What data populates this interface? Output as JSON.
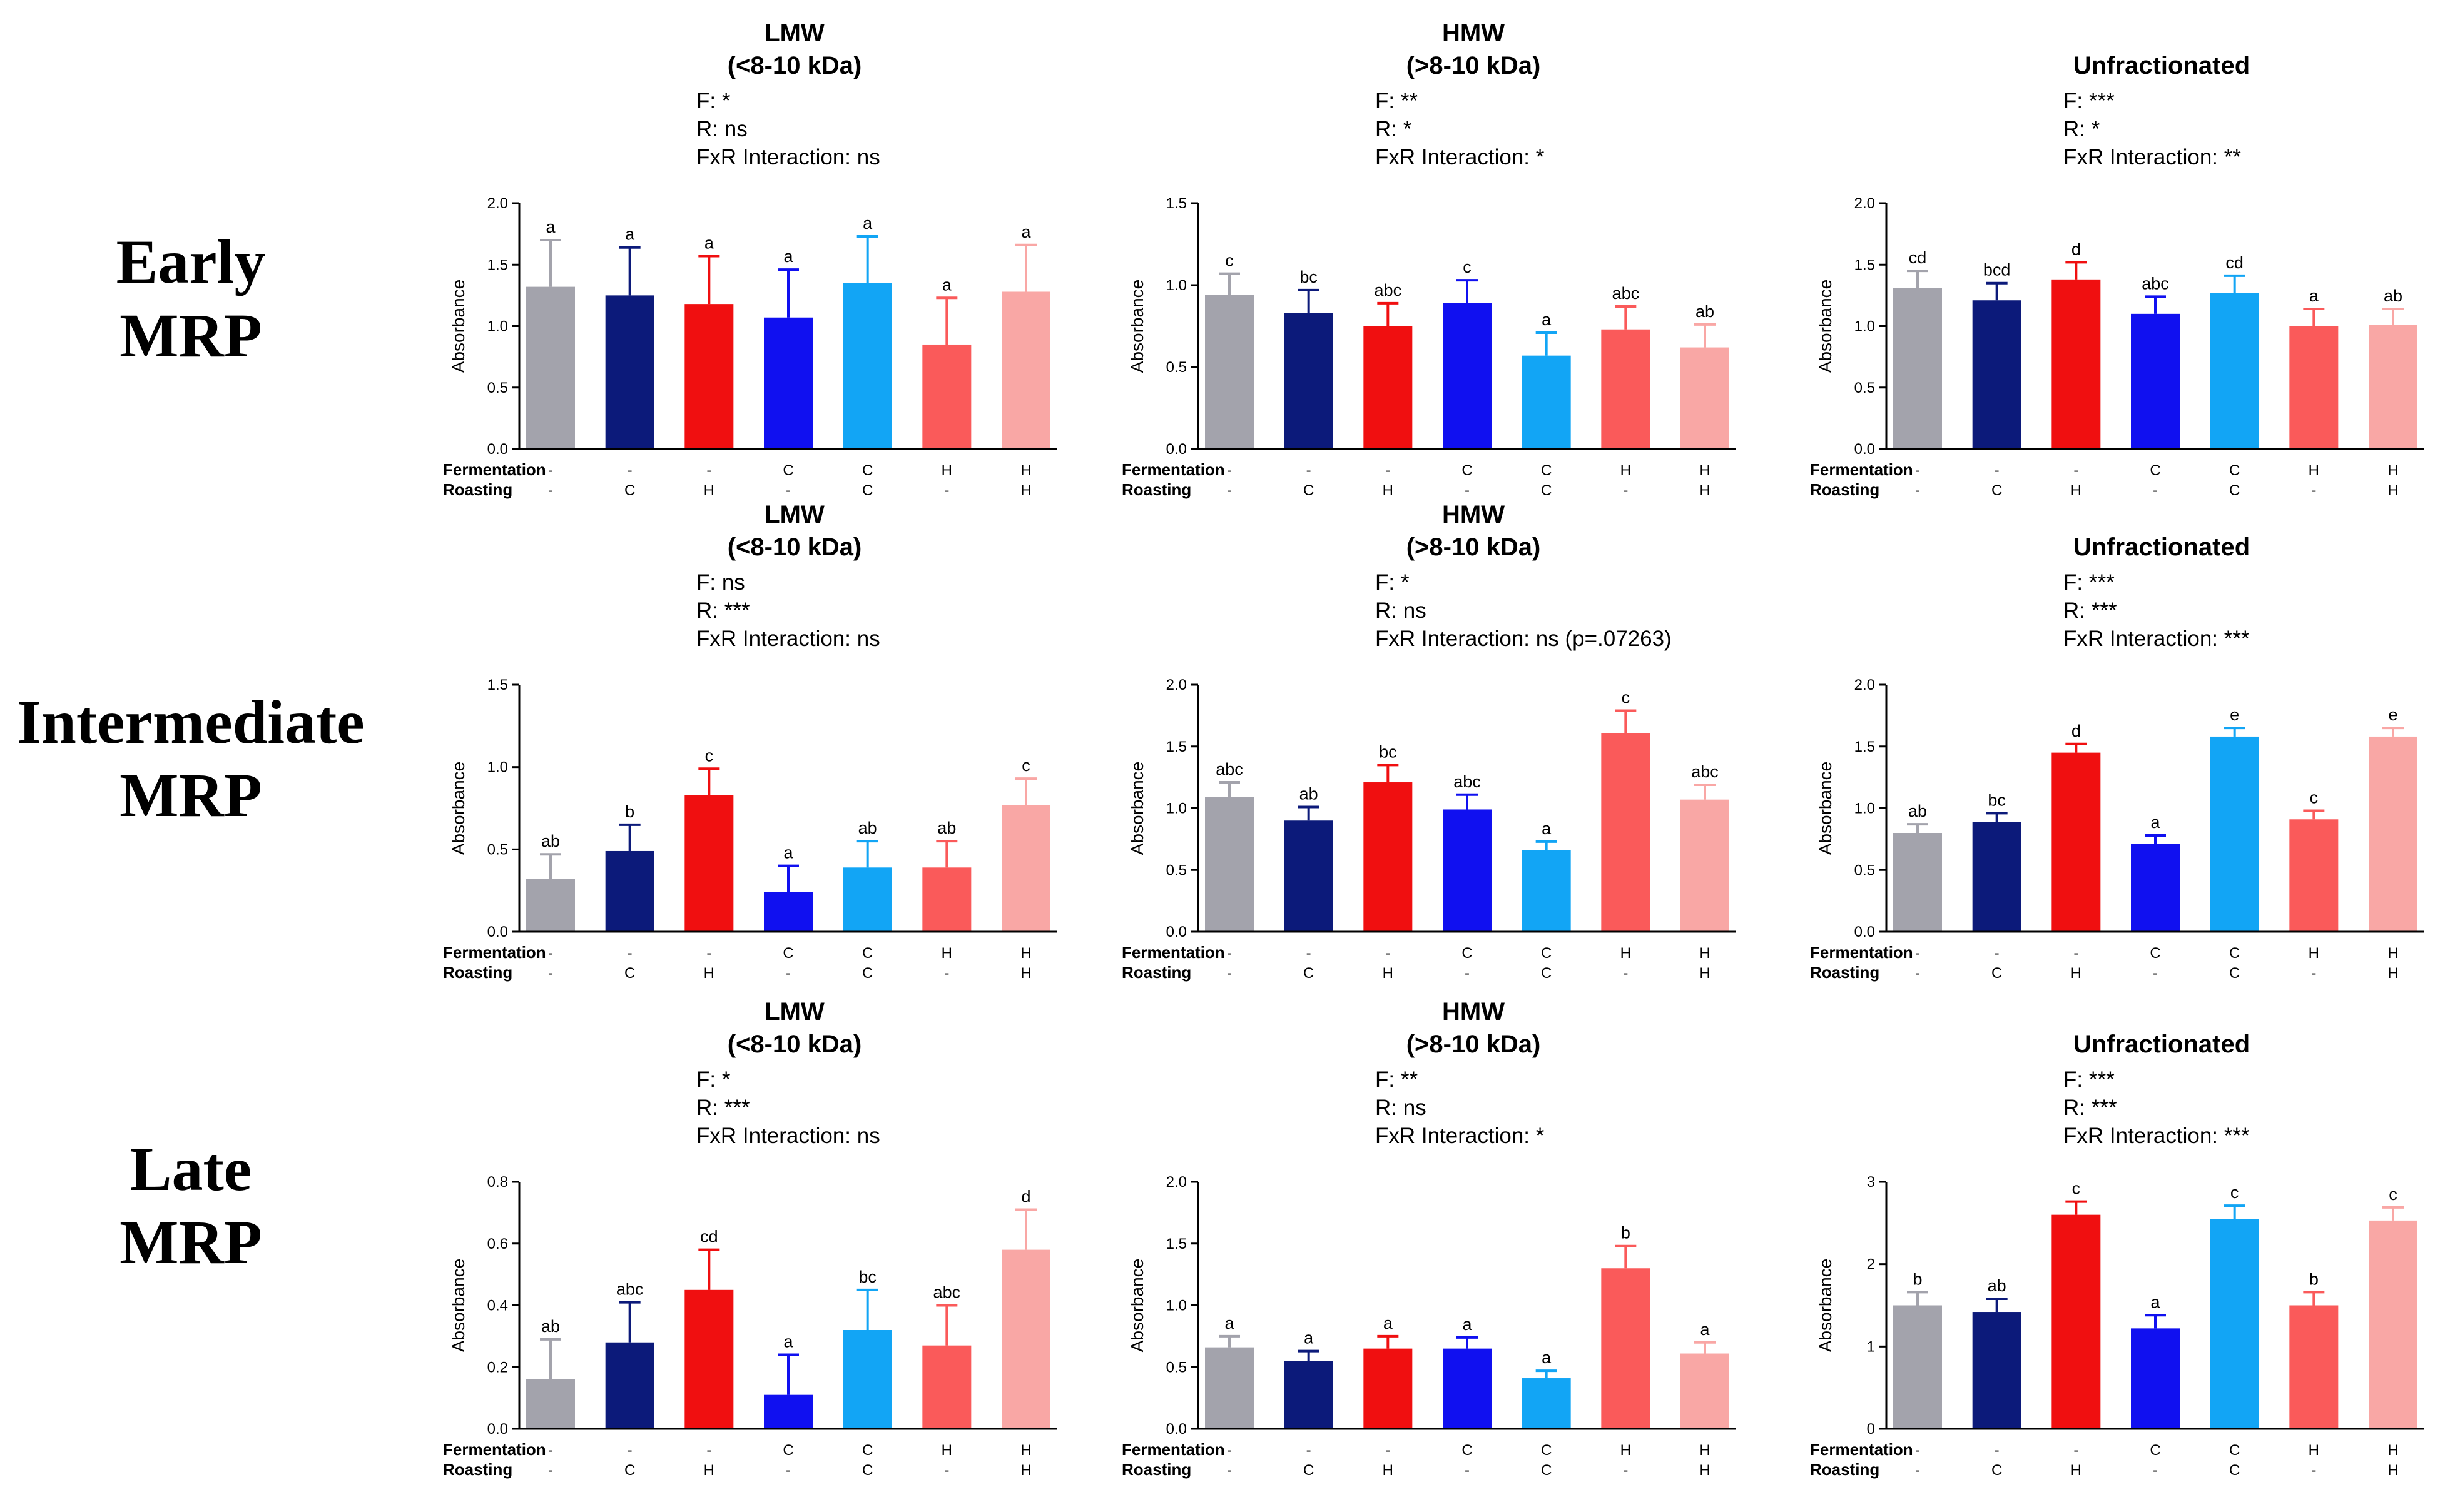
{
  "row_labels": [
    {
      "line1": "Early",
      "line2": "MRP"
    },
    {
      "line1": "Intermediate",
      "line2": "MRP"
    },
    {
      "line1": "Late",
      "line2": "MRP"
    }
  ],
  "colors": [
    "#a3a3ac",
    "#0c1a7a",
    "#f00f10",
    "#1010f0",
    "#12a5f5",
    "#fa5a5a",
    "#f9a7a5"
  ],
  "factor_labels": {
    "fermentation": "Fermentation",
    "roasting": "Roasting"
  },
  "fermentation": [
    "-",
    "-",
    "-",
    "C",
    "C",
    "H",
    "H"
  ],
  "roasting": [
    "-",
    "C",
    "H",
    "-",
    "C",
    "-",
    "H"
  ],
  "chart_data": [
    {
      "type": "bar",
      "title": [
        "LMW",
        "(<8-10 kDa)"
      ],
      "stats": [
        "F: *",
        "R: ns",
        "FxR Interaction: ns"
      ],
      "ylabel": "Absorbance",
      "ylim": [
        0,
        2.0
      ],
      "yticks": [
        "0.0",
        "0.5",
        "1.0",
        "1.5",
        "2.0"
      ],
      "values": [
        1.32,
        1.25,
        1.18,
        1.07,
        1.35,
        0.85,
        1.28
      ],
      "errors": [
        0.38,
        0.39,
        0.39,
        0.39,
        0.38,
        0.38,
        0.38
      ],
      "groups": [
        "a",
        "a",
        "a",
        "a",
        "a",
        "a",
        "a"
      ]
    },
    {
      "type": "bar",
      "title": [
        "HMW",
        "(>8-10 kDa)"
      ],
      "stats": [
        "F: **",
        "R: *",
        "FxR Interaction: *"
      ],
      "ylabel": "Absorbance",
      "ylim": [
        0,
        1.5
      ],
      "yticks": [
        "0.0",
        "0.5",
        "1.0",
        "1.5"
      ],
      "values": [
        0.94,
        0.83,
        0.75,
        0.89,
        0.57,
        0.73,
        0.62
      ],
      "errors": [
        0.13,
        0.14,
        0.14,
        0.14,
        0.14,
        0.14,
        0.14
      ],
      "groups": [
        "c",
        "bc",
        "abc",
        "c",
        "a",
        "abc",
        "ab"
      ]
    },
    {
      "type": "bar",
      "title": [
        "Unfractionated"
      ],
      "stats": [
        "F: ***",
        "R: *",
        "FxR Interaction: **"
      ],
      "ylabel": "Absorbance",
      "ylim": [
        0,
        2.0
      ],
      "yticks": [
        "0.0",
        "0.5",
        "1.0",
        "1.5",
        "2.0"
      ],
      "values": [
        1.31,
        1.21,
        1.38,
        1.1,
        1.27,
        1.0,
        1.01
      ],
      "errors": [
        0.14,
        0.14,
        0.14,
        0.14,
        0.14,
        0.14,
        0.13
      ],
      "groups": [
        "cd",
        "bcd",
        "d",
        "abc",
        "cd",
        "a",
        "ab"
      ]
    },
    {
      "type": "bar",
      "title": [
        "LMW",
        "(<8-10 kDa)"
      ],
      "stats": [
        "F: ns",
        "R: ***",
        "FxR Interaction: ns"
      ],
      "ylabel": "Absorbance",
      "ylim": [
        0,
        1.5
      ],
      "yticks": [
        "0.0",
        "0.5",
        "1.0",
        "1.5"
      ],
      "values": [
        0.32,
        0.49,
        0.83,
        0.24,
        0.39,
        0.39,
        0.77
      ],
      "errors": [
        0.15,
        0.16,
        0.16,
        0.16,
        0.16,
        0.16,
        0.16
      ],
      "groups": [
        "ab",
        "b",
        "c",
        "a",
        "ab",
        "ab",
        "c"
      ]
    },
    {
      "type": "bar",
      "title": [
        "HMW",
        "(>8-10 kDa)"
      ],
      "stats": [
        "F: *",
        "R: ns",
        "FxR Interaction: ns (p=.07263)"
      ],
      "ylabel": "Absorbance",
      "ylim": [
        0,
        2.0
      ],
      "yticks": [
        "0.0",
        "0.5",
        "1.0",
        "1.5",
        "2.0"
      ],
      "values": [
        1.09,
        0.9,
        1.21,
        0.99,
        0.66,
        1.61,
        1.07
      ],
      "errors": [
        0.12,
        0.11,
        0.14,
        0.12,
        0.07,
        0.18,
        0.12
      ],
      "groups": [
        "abc",
        "ab",
        "bc",
        "abc",
        "a",
        "c",
        "abc"
      ]
    },
    {
      "type": "bar",
      "title": [
        "Unfractionated"
      ],
      "stats": [
        "F: ***",
        "R: ***",
        "FxR Interaction: ***"
      ],
      "ylabel": "Absorbance",
      "ylim": [
        0,
        2.0
      ],
      "yticks": [
        "0.0",
        "0.5",
        "1.0",
        "1.5",
        "2.0"
      ],
      "values": [
        0.8,
        0.89,
        1.45,
        0.71,
        1.58,
        0.91,
        1.58
      ],
      "errors": [
        0.07,
        0.07,
        0.07,
        0.07,
        0.07,
        0.07,
        0.07
      ],
      "groups": [
        "ab",
        "bc",
        "d",
        "a",
        "e",
        "c",
        "e"
      ]
    },
    {
      "type": "bar",
      "title": [
        "LMW",
        "(<8-10 kDa)"
      ],
      "stats": [
        "F: *",
        "R: ***",
        "FxR Interaction: ns"
      ],
      "ylabel": "Absorbance",
      "ylim": [
        0,
        0.8
      ],
      "yticks": [
        "0.0",
        "0.2",
        "0.4",
        "0.6",
        "0.8"
      ],
      "values": [
        0.16,
        0.28,
        0.45,
        0.11,
        0.32,
        0.27,
        0.58
      ],
      "errors": [
        0.13,
        0.13,
        0.13,
        0.13,
        0.13,
        0.13,
        0.13
      ],
      "groups": [
        "ab",
        "abc",
        "cd",
        "a",
        "bc",
        "abc",
        "d"
      ]
    },
    {
      "type": "bar",
      "title": [
        "HMW",
        "(>8-10 kDa)"
      ],
      "stats": [
        "F: **",
        "R: ns",
        "FxR Interaction: *"
      ],
      "ylabel": "Absorbance",
      "ylim": [
        0,
        2.0
      ],
      "yticks": [
        "0.0",
        "0.5",
        "1.0",
        "1.5",
        "2.0"
      ],
      "values": [
        0.66,
        0.55,
        0.65,
        0.65,
        0.41,
        1.3,
        0.61
      ],
      "errors": [
        0.09,
        0.08,
        0.1,
        0.09,
        0.06,
        0.18,
        0.09
      ],
      "groups": [
        "a",
        "a",
        "a",
        "a",
        "a",
        "b",
        "a"
      ]
    },
    {
      "type": "bar",
      "title": [
        "Unfractionated"
      ],
      "stats": [
        "F: ***",
        "R: ***",
        "FxR Interaction: ***"
      ],
      "ylabel": "Absorbance",
      "ylim": [
        0,
        3
      ],
      "yticks": [
        "0",
        "1",
        "2",
        "3"
      ],
      "values": [
        1.5,
        1.42,
        2.6,
        1.22,
        2.55,
        1.5,
        2.53
      ],
      "errors": [
        0.16,
        0.16,
        0.16,
        0.16,
        0.16,
        0.16,
        0.16
      ],
      "groups": [
        "b",
        "ab",
        "c",
        "a",
        "c",
        "b",
        "c"
      ]
    }
  ]
}
